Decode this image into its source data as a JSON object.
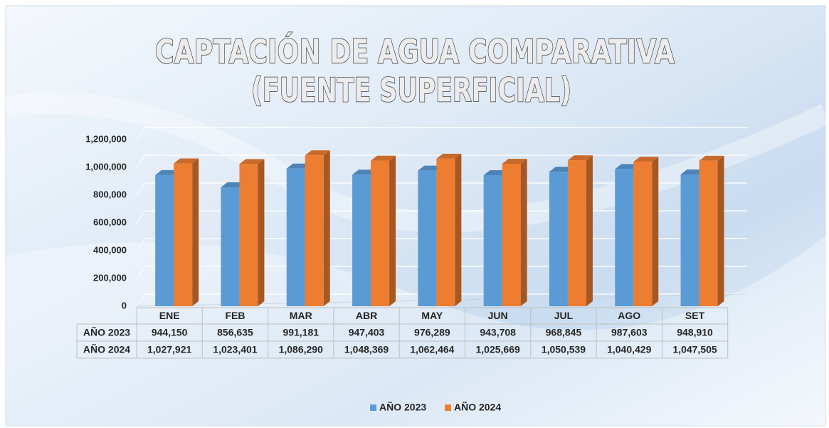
{
  "chart_data": {
    "type": "bar",
    "title": [
      "CAPTACIÓN DE AGUA COMPARATIVA",
      "(FUENTE SUPERFICIAL)"
    ],
    "categories": [
      "ENE",
      "FEB",
      "MAR",
      "ABR",
      "MAY",
      "JUN",
      "JUL",
      "AGO",
      "SET"
    ],
    "series": [
      {
        "name": "AÑO 2023",
        "color": "#5b9bd5",
        "values": [
          944150,
          856635,
          991181,
          947403,
          976289,
          943708,
          968845,
          987603,
          948910
        ],
        "value_labels": [
          "944,150",
          "856,635",
          "991,181",
          "947,403",
          "976,289",
          "943,708",
          "968,845",
          "987,603",
          "948,910"
        ]
      },
      {
        "name": "AÑO 2024",
        "color": "#ed7d31",
        "values": [
          1027921,
          1023401,
          1086290,
          1048369,
          1062464,
          1025669,
          1050539,
          1040429,
          1047505
        ],
        "value_labels": [
          "1,027,921",
          "1,023,401",
          "1,086,290",
          "1,048,369",
          "1,062,464",
          "1,025,669",
          "1,050,539",
          "1,040,429",
          "1,047,505"
        ]
      }
    ],
    "ylim": [
      0,
      1200000
    ],
    "yticks": [
      {
        "value": 0,
        "label": "0"
      },
      {
        "value": 200000,
        "label": "200,000"
      },
      {
        "value": 400000,
        "label": "400,000"
      },
      {
        "value": 600000,
        "label": "600,000"
      },
      {
        "value": 800000,
        "label": "800,000"
      },
      {
        "value": 1000000,
        "label": "1,000,000"
      },
      {
        "value": 1200000,
        "label": "1,200,000"
      }
    ],
    "grid": true,
    "legend": "bottom",
    "data_table": true
  }
}
